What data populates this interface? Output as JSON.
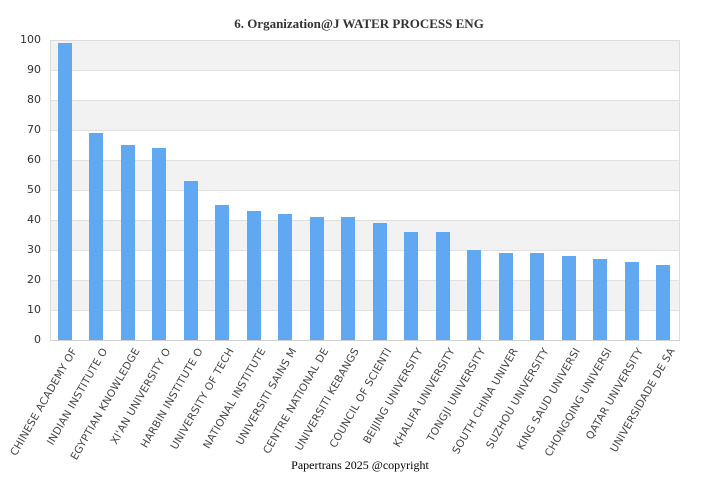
{
  "chart_data": {
    "type": "bar",
    "title": "6. Organization@J WATER PROCESS ENG",
    "xlabel": "",
    "ylabel": "",
    "ylim": [
      0,
      100
    ],
    "yticks": [
      0,
      10,
      20,
      30,
      40,
      50,
      60,
      70,
      80,
      90,
      100
    ],
    "grid": true,
    "legend": null,
    "bar_color": "#61a8f2",
    "categories": [
      "CHINESE ACADEMY OF",
      "INDIAN INSTITUTE O",
      "EGYPTIAN KNOWLEDGE",
      "XI'AN UNIVERSITY O",
      "HARBIN INSTITUTE O",
      "UNIVERSITY OF TECH",
      "NATIONAL INSTITUTE",
      "UNIVERSITI SAINS M",
      "CENTRE NATIONAL DE",
      "UNIVERSITI KEBANGS",
      "COUNCIL OF SCIENTI",
      "BEIJING UNIVERSITY",
      "KHALIFA UNIVERSITY",
      "TONGJI UNIVERSITY",
      "SOUTH CHINA UNIVER",
      "SUZHOU UNIVERSITY",
      "KING SAUD UNIVERSI",
      "CHONGQING UNIVERSI",
      "QATAR UNIVERSITY",
      "UNIVERSIDADE DE SA"
    ],
    "values": [
      99,
      69,
      65,
      64,
      53,
      45,
      43,
      42,
      41,
      41,
      39,
      36,
      36,
      30,
      29,
      29,
      28,
      27,
      26,
      25
    ]
  },
  "footer": "Papertrans 2025 @copyright"
}
